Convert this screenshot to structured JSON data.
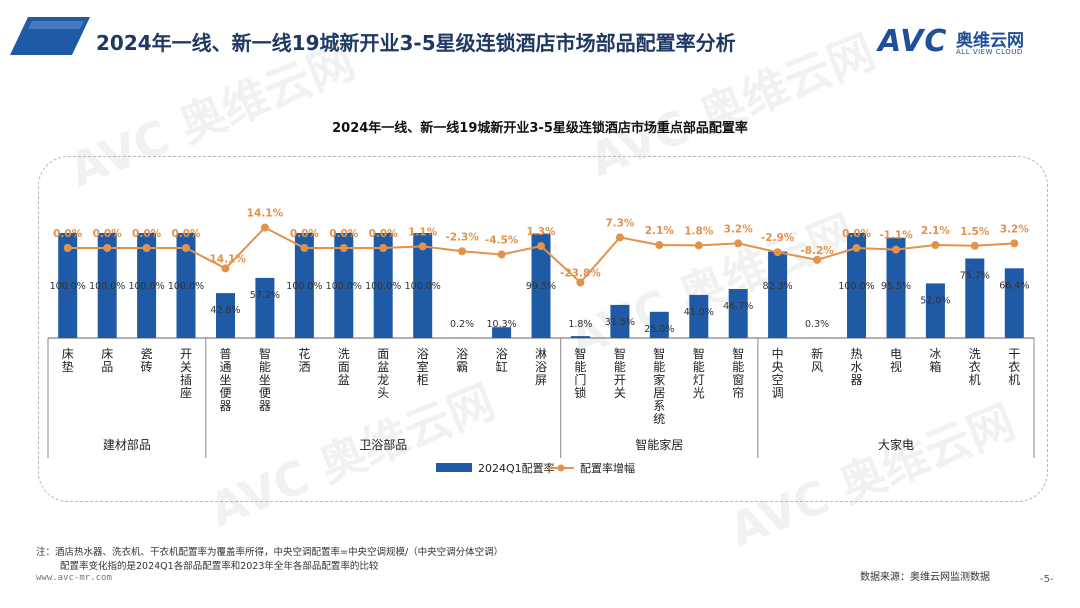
{
  "header": {
    "title": "2024年一线、新一线19城新开业3-5星级连锁酒店市场部品配置率分析",
    "logo_text": "AVC",
    "logo_cn": "奥维云网",
    "logo_en": "ALL VIEW CLOUD"
  },
  "watermark": {
    "text": "AVC 奥维云网",
    "sub": "ALL VIEW CLOUD"
  },
  "chart_data": {
    "type": "bar",
    "title": "2024年一线、新一线19城新开业3-5星级连锁酒店市场重点部品配置率",
    "categories": [
      "床垫",
      "床品",
      "瓷砖",
      "开关插座",
      "普通坐便器",
      "智能坐便器",
      "花洒",
      "洗面盆",
      "面盆龙头",
      "浴室柜",
      "浴霸",
      "浴缸",
      "淋浴屏",
      "智能门锁",
      "智能开关",
      "智能家居系统",
      "智能灯光",
      "智能窗帘",
      "中央空调",
      "新风",
      "热水器",
      "电视",
      "冰箱",
      "洗衣机",
      "干衣机"
    ],
    "groups": [
      {
        "name": "建材部品",
        "start": 0,
        "end": 3
      },
      {
        "name": "卫浴部品",
        "start": 4,
        "end": 12
      },
      {
        "name": "智能家居",
        "start": 13,
        "end": 17
      },
      {
        "name": "大家电",
        "start": 18,
        "end": 24
      }
    ],
    "series": [
      {
        "name": "2024Q1配置率",
        "kind": "bar",
        "color": "#1f5aa6",
        "values": [
          100.0,
          100.0,
          100.0,
          100.0,
          42.8,
          57.2,
          100.0,
          100.0,
          100.0,
          100.0,
          0.2,
          10.3,
          99.5,
          1.8,
          31.5,
          25.0,
          41.0,
          46.7,
          82.3,
          0.3,
          100.0,
          95.5,
          52.0,
          75.7,
          66.4
        ],
        "labels": [
          "100.0%",
          "100.0%",
          "100.0%",
          "100.0%",
          "42.8%",
          "57.2%",
          "100.0%",
          "100.0%",
          "100.0%",
          "100.0%",
          "0.2%",
          "10.3%",
          "99.5%",
          "1.8%",
          "31.5%",
          "25.0%",
          "41.0%",
          "46.7%",
          "82.3%",
          "0.3%",
          "100.0%",
          "95.5%",
          "52.0%",
          "75.7%",
          "66.4%"
        ]
      },
      {
        "name": "配置率增幅",
        "kind": "line",
        "color": "#e3924a",
        "values": [
          0.0,
          0.0,
          0.0,
          0.0,
          -14.1,
          14.1,
          0.0,
          0.0,
          0.0,
          1.1,
          -2.3,
          -4.5,
          1.3,
          -23.8,
          7.3,
          2.1,
          1.8,
          3.2,
          -2.9,
          -8.2,
          0.0,
          -1.1,
          2.1,
          1.5,
          3.2
        ],
        "labels": [
          "0.0%",
          "0.0%",
          "0.0%",
          "0.0%",
          "-14.1%",
          "14.1%",
          "0.0%",
          "0.0%",
          "0.0%",
          "1.1%",
          "-2.3%",
          "-4.5%",
          "1.3%",
          "-23.8%",
          "7.3%",
          "2.1%",
          "1.8%",
          "3.2%",
          "-2.9%",
          "-8.2%",
          "0.0%",
          "-1.1%",
          "2.1%",
          "1.5%",
          "3.2%"
        ]
      }
    ],
    "ylim_bar": [
      0,
      100
    ],
    "ylim_line": [
      -30,
      20
    ],
    "legend_position": "bottom",
    "grid": false
  },
  "notes": {
    "line1": "注：酒店热水器、洗衣机、干衣机配置率为覆盖率所得，中央空调配置率=中央空调规模/（中央空调分体空调）",
    "line2": "配置率变化指的是2024Q1各部品配置率和2023年全年各部品配置率的比较"
  },
  "footer": {
    "url": "www.avc-mr.com",
    "source": "数据来源：奥维云网监测数据",
    "page": "-5-"
  }
}
